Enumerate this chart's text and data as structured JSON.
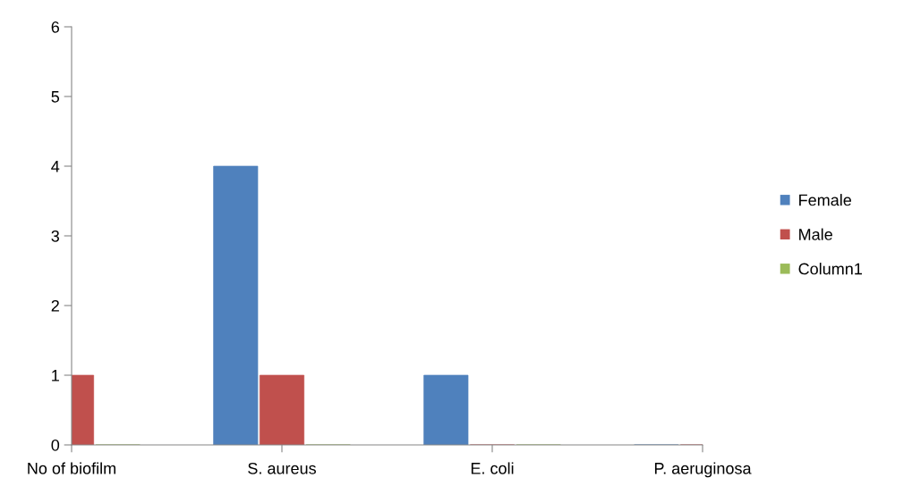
{
  "chart_data": {
    "type": "bar",
    "categories": [
      "No of biofilm",
      "S. aureus",
      "E. coli",
      "P. aeruginosa"
    ],
    "series": [
      {
        "name": "Female",
        "color": "#4f81bd",
        "values": [
          0,
          4,
          1,
          0
        ]
      },
      {
        "name": "Male",
        "color": "#c0504d",
        "values": [
          1,
          1,
          0,
          0
        ]
      },
      {
        "name": "Column1",
        "color": "#9bbb59",
        "values": [
          0,
          0,
          0,
          0
        ]
      }
    ],
    "ylim": [
      0,
      6
    ],
    "yticks": [
      0,
      1,
      2,
      3,
      4,
      5,
      6
    ],
    "grid": false,
    "legend": "right"
  }
}
